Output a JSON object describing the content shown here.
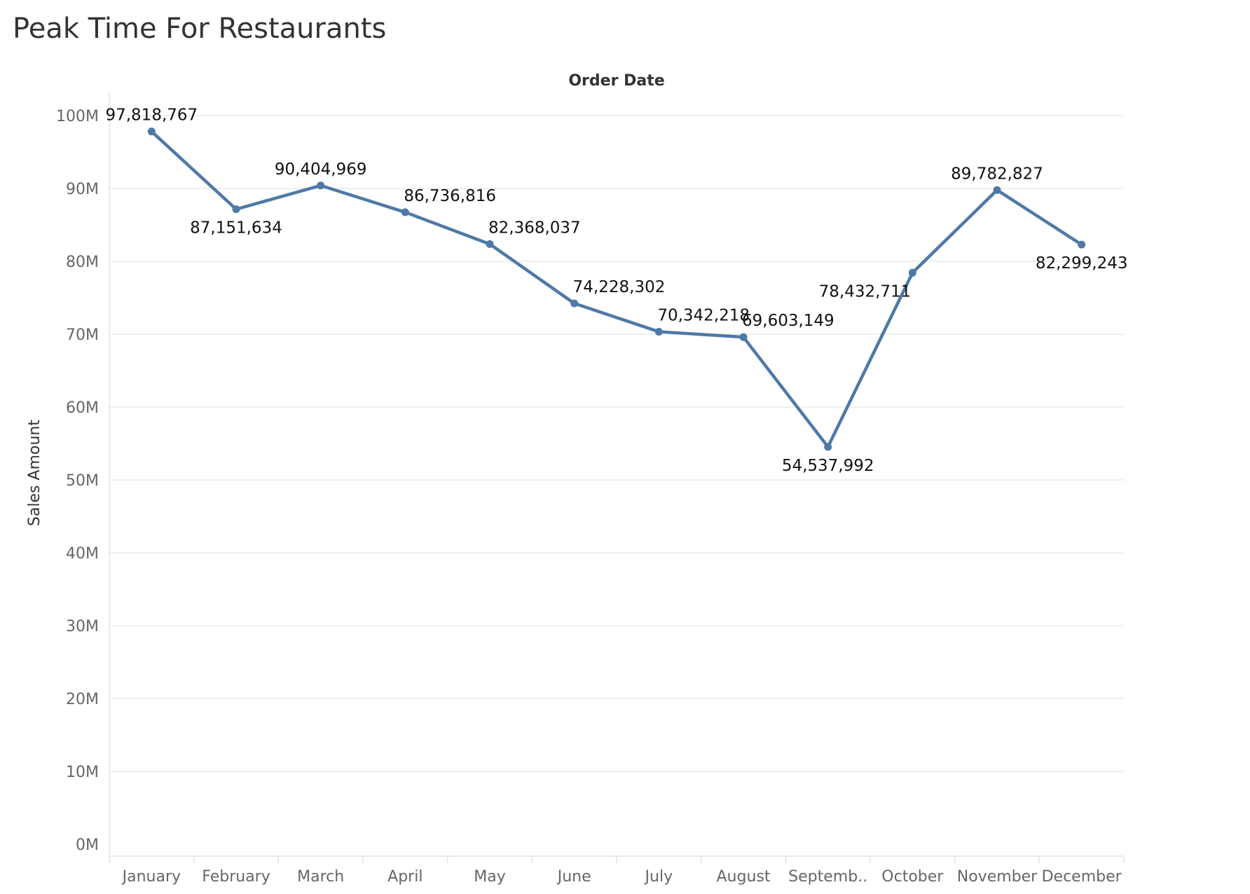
{
  "title": "Peak Time For Restaurants",
  "chart_data": {
    "type": "line",
    "title": "Peak Time For Restaurants",
    "header": "Order Date",
    "xlabel": "Order Date",
    "ylabel": "Sales Amount",
    "categories": [
      "January",
      "February",
      "March",
      "April",
      "May",
      "June",
      "July",
      "August",
      "Septemb..",
      "October",
      "November",
      "December"
    ],
    "values": [
      97818767,
      87151634,
      90404969,
      86736816,
      82368037,
      74228302,
      70342218,
      69603149,
      54537992,
      78432711,
      89782827,
      82299243
    ],
    "value_labels": [
      "97,818,767",
      "87,151,634",
      "90,404,969",
      "86,736,816",
      "82,368,037",
      "74,228,302",
      "70,342,218",
      "69,603,149",
      "54,537,992",
      "78,432,711",
      "89,782,827",
      "82,299,243"
    ],
    "ylim": [
      0,
      100000000
    ],
    "yticks": [
      0,
      10000000,
      20000000,
      30000000,
      40000000,
      50000000,
      60000000,
      70000000,
      80000000,
      90000000,
      100000000
    ],
    "ytick_labels": [
      "0M",
      "10M",
      "20M",
      "30M",
      "40M",
      "50M",
      "60M",
      "70M",
      "80M",
      "90M",
      "100M"
    ],
    "grid": true,
    "line_color": "#4e79a7"
  }
}
